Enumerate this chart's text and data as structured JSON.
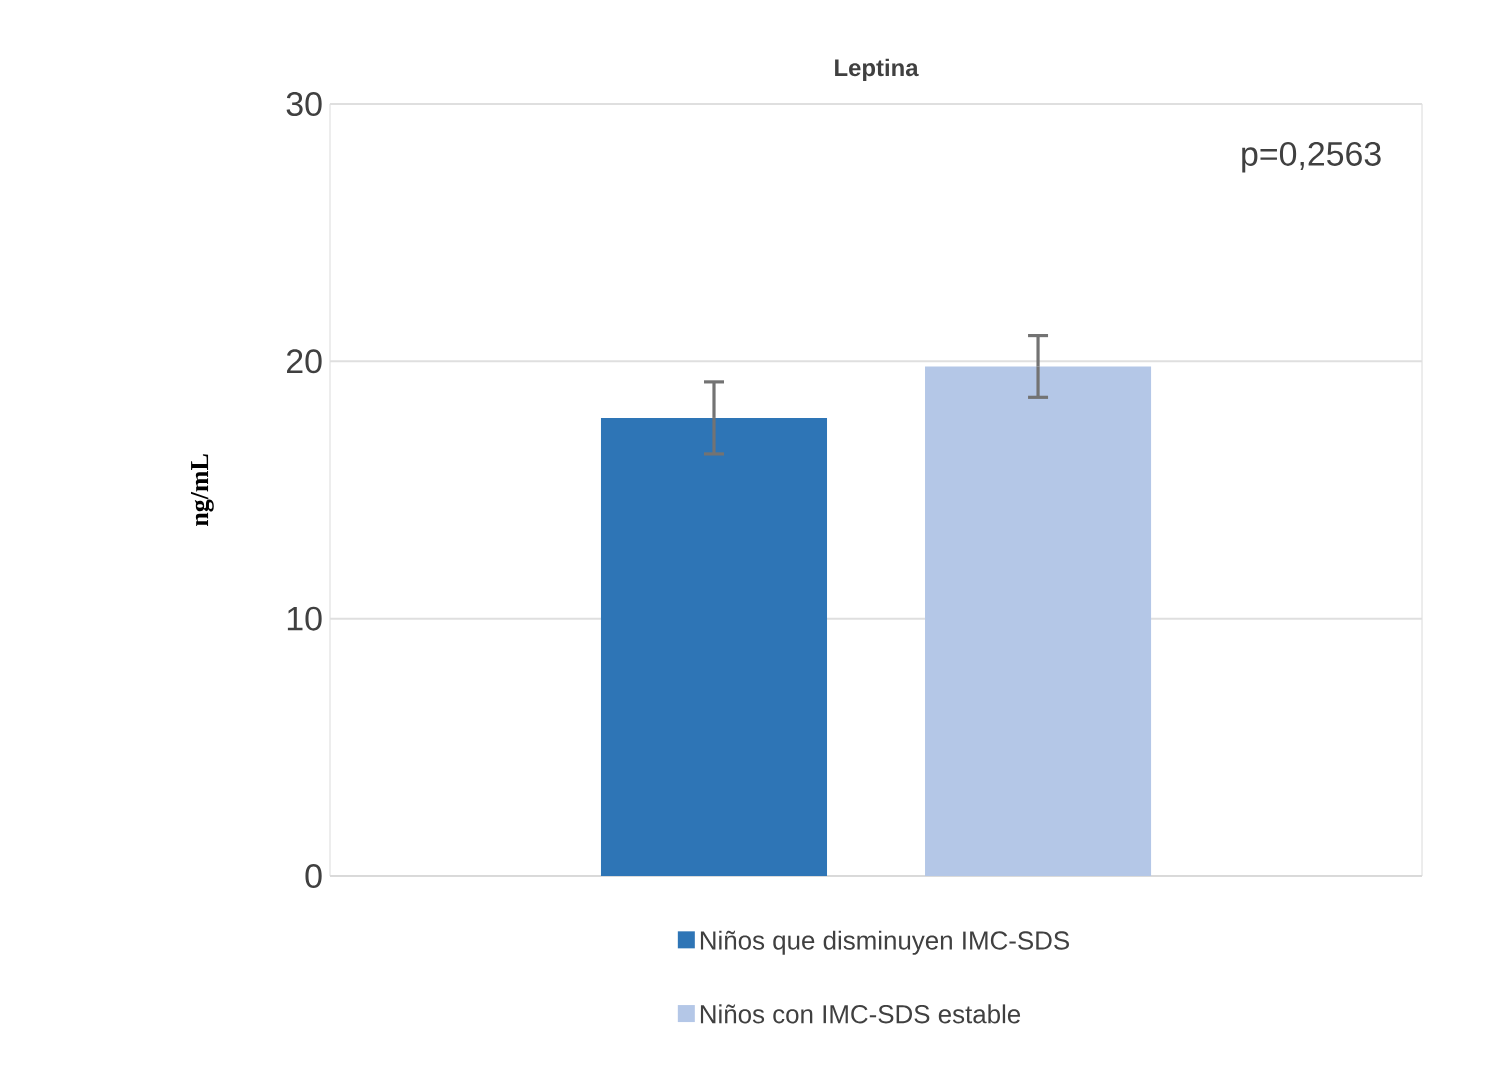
{
  "chart_data": {
    "type": "bar",
    "title": "Leptina",
    "ylabel": "ng/mL",
    "categories": [
      null
    ],
    "series": [
      {
        "name": "Niños que disminuyen IMC-SDS",
        "color": "#2e75b6",
        "values": [
          17.8
        ],
        "errors": [
          1.4
        ]
      },
      {
        "name": "Niños con IMC-SDS estable",
        "color": "#b4c7e7",
        "values": [
          19.8
        ],
        "errors": [
          1.2
        ]
      }
    ],
    "ylim": [
      0,
      30
    ],
    "yticks": [
      0,
      10,
      20,
      30
    ],
    "grid": "y",
    "legend": "bottom",
    "annotations": [
      {
        "text": "p=0,2563"
      }
    ]
  }
}
